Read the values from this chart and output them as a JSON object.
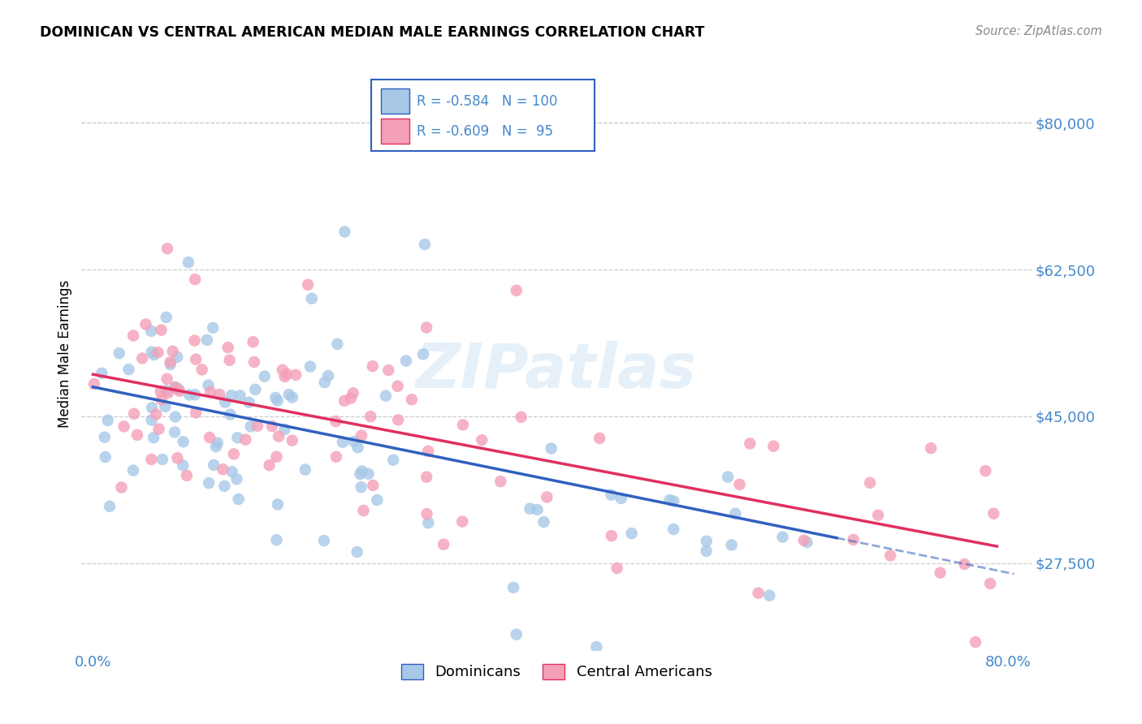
{
  "title": "DOMINICAN VS CENTRAL AMERICAN MEDIAN MALE EARNINGS CORRELATION CHART",
  "source": "Source: ZipAtlas.com",
  "ylabel": "Median Male Earnings",
  "xlim": [
    -0.01,
    0.82
  ],
  "ylim": [
    17000,
    88000
  ],
  "yticks": [
    27500,
    45000,
    62500,
    80000
  ],
  "ytick_labels": [
    "$27,500",
    "$45,000",
    "$62,500",
    "$80,000"
  ],
  "dominican_color": "#a8c8e8",
  "central_american_color": "#f4a0b8",
  "dominican_line_color": "#3060c0",
  "central_american_line_color": "#e03060",
  "R_dominican": -0.584,
  "N_dominican": 100,
  "R_central": -0.609,
  "N_central": 95,
  "legend_label_1": "Dominicans",
  "legend_label_2": "Central Americans",
  "watermark": "ZIPatlas",
  "background_color": "#ffffff",
  "grid_color": "#cccccc",
  "axis_color": "#4488cc",
  "dom_line_x0": 0.0,
  "dom_line_y0": 48500,
  "dom_line_x1": 0.65,
  "dom_line_y1": 30500,
  "ca_line_x0": 0.0,
  "ca_line_y0": 50000,
  "ca_line_x1": 0.79,
  "ca_line_y1": 29500
}
